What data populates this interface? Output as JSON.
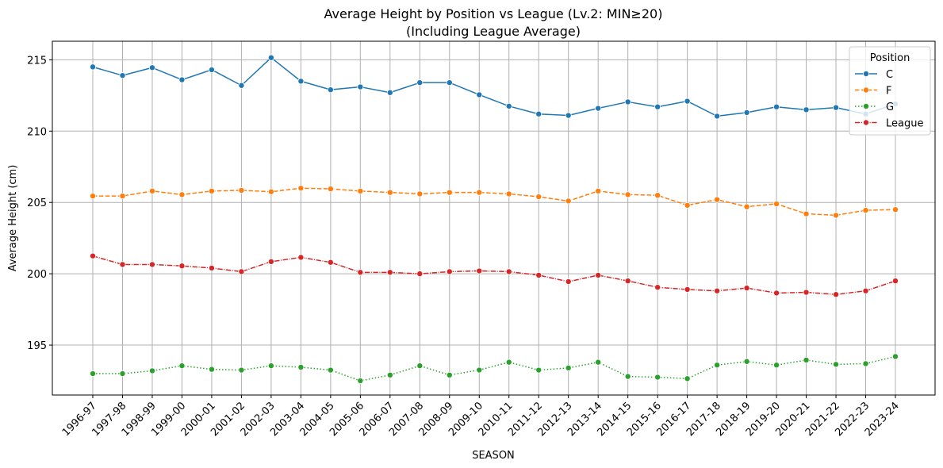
{
  "chart_data": {
    "type": "line",
    "title": "Average Height by Position vs League (Lv.2: MIN≥20)",
    "subtitle": "(Including League Average)",
    "xlabel": "SEASON",
    "ylabel": "Average Height (cm)",
    "ylim": [
      191.5,
      216.3
    ],
    "yticks": [
      195,
      200,
      205,
      210,
      215
    ],
    "grid": true,
    "legend": {
      "title": "Position",
      "placement": "top-right"
    },
    "categories": [
      "1996-97",
      "1997-98",
      "1998-99",
      "1999-00",
      "2000-01",
      "2001-02",
      "2002-03",
      "2003-04",
      "2004-05",
      "2005-06",
      "2006-07",
      "2007-08",
      "2008-09",
      "2009-10",
      "2010-11",
      "2011-12",
      "2012-13",
      "2013-14",
      "2014-15",
      "2015-16",
      "2016-17",
      "2017-18",
      "2018-19",
      "2019-20",
      "2020-21",
      "2021-22",
      "2022-23",
      "2023-24"
    ],
    "series": [
      {
        "name": "C",
        "color": "#1f77b4",
        "dash": "solid",
        "values": [
          214.5,
          213.9,
          214.45,
          213.6,
          214.3,
          213.2,
          215.15,
          213.5,
          212.9,
          213.1,
          212.7,
          213.4,
          213.4,
          212.55,
          211.75,
          211.2,
          211.1,
          211.6,
          212.05,
          211.7,
          212.1,
          211.05,
          211.3,
          211.7,
          211.5,
          211.65,
          211.2,
          211.9
        ]
      },
      {
        "name": "F",
        "color": "#ff7f0e",
        "dash": "dashed",
        "values": [
          205.45,
          205.45,
          205.8,
          205.55,
          205.8,
          205.85,
          205.75,
          206.0,
          205.95,
          205.8,
          205.7,
          205.6,
          205.7,
          205.7,
          205.6,
          205.4,
          205.1,
          205.8,
          205.55,
          205.5,
          204.8,
          205.2,
          204.7,
          204.9,
          204.2,
          204.1,
          204.45,
          204.5
        ]
      },
      {
        "name": "G",
        "color": "#2ca02c",
        "dash": "dotted",
        "values": [
          193.0,
          193.0,
          193.2,
          193.55,
          193.3,
          193.25,
          193.55,
          193.45,
          193.25,
          192.5,
          192.9,
          193.55,
          192.9,
          193.25,
          193.8,
          193.25,
          193.4,
          193.8,
          192.8,
          192.75,
          192.65,
          193.6,
          193.85,
          193.6,
          193.95,
          193.65,
          193.7,
          194.2
        ]
      },
      {
        "name": "League",
        "color": "#d62728",
        "dash": "dashdot",
        "values": [
          201.25,
          200.65,
          200.65,
          200.55,
          200.4,
          200.15,
          200.85,
          201.15,
          200.8,
          200.1,
          200.1,
          200.0,
          200.15,
          200.2,
          200.15,
          199.9,
          199.45,
          199.9,
          199.5,
          199.05,
          198.9,
          198.8,
          199.0,
          198.65,
          198.7,
          198.55,
          198.8,
          199.5
        ]
      }
    ]
  }
}
